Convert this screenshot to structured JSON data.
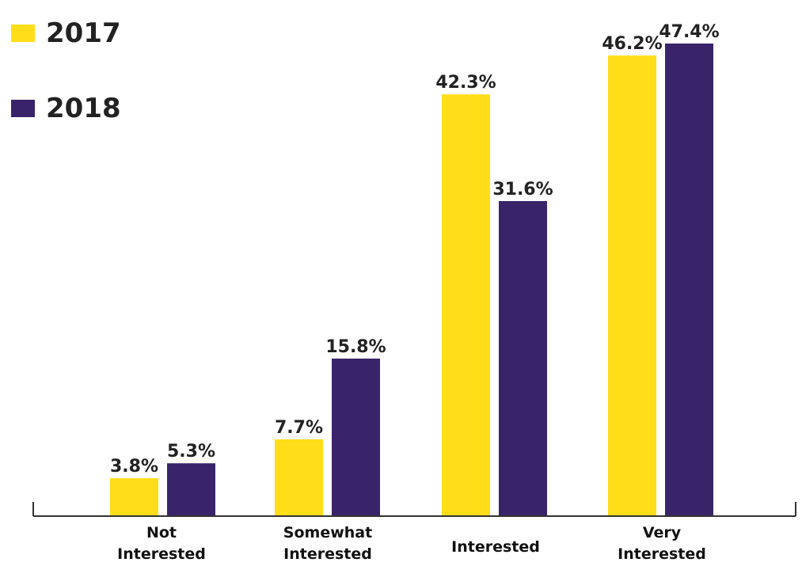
{
  "chart_data": {
    "type": "bar",
    "categories": [
      "Not\nInterested",
      "Somewhat\nInterested",
      "Interested",
      "Very\nInterested"
    ],
    "series": [
      {
        "name": "2017",
        "values": [
          3.8,
          7.7,
          42.3,
          46.2
        ],
        "labels": [
          "3.8%",
          "7.7%",
          "42.3%",
          "46.2%"
        ]
      },
      {
        "name": "2018",
        "values": [
          5.3,
          15.8,
          31.6,
          47.4
        ],
        "labels": [
          "5.3%",
          "15.8%",
          "31.6%",
          "47.4%"
        ]
      }
    ],
    "ylim": [
      0,
      50
    ],
    "grid": false,
    "legend_position": "top-left",
    "colors": {
      "2017": "#FFDD19",
      "2018": "#3A2469"
    }
  }
}
